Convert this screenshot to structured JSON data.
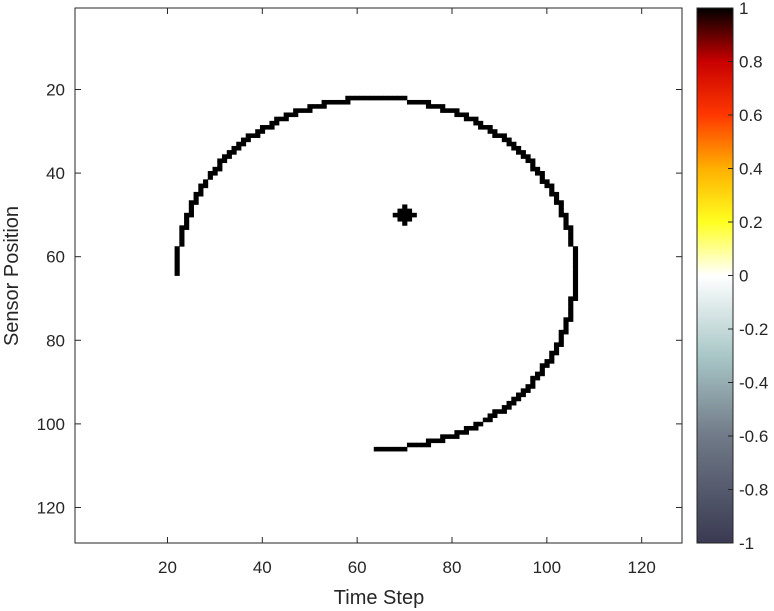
{
  "chart_data": {
    "type": "heatmap",
    "xlabel": "Time Step",
    "ylabel": "Sensor Position",
    "xlim": [
      0.5,
      128.5
    ],
    "ylim": [
      0.5,
      128.5
    ],
    "y_reversed": true,
    "x_ticks": [
      20,
      40,
      60,
      80,
      100,
      120
    ],
    "y_ticks": [
      20,
      40,
      60,
      80,
      100,
      120
    ],
    "grid": false,
    "colorbar": {
      "range": [
        -1,
        1
      ],
      "ticks": [
        "1",
        "0.8",
        "0.6",
        "0.4",
        "0.2",
        "0",
        "-0.2",
        "-0.4",
        "-0.6",
        "-0.8",
        "-1"
      ],
      "colormap_stops": [
        {
          "value": -1.0,
          "color": "#3a3a52"
        },
        {
          "value": -0.6,
          "color": "#707a88"
        },
        {
          "value": -0.3,
          "color": "#a9c7c7"
        },
        {
          "value": 0.0,
          "color": "#ffffff"
        },
        {
          "value": 0.2,
          "color": "#ffff20"
        },
        {
          "value": 0.4,
          "color": "#ffb000"
        },
        {
          "value": 0.6,
          "color": "#ff3800"
        },
        {
          "value": 0.8,
          "color": "#c80000"
        },
        {
          "value": 1.0,
          "color": "#000000"
        }
      ]
    },
    "background_value": 0,
    "feature_value": 1,
    "arc": {
      "center_x": 64,
      "center_y": 64,
      "radius": 42,
      "start_point": [
        22,
        64
      ],
      "end_point": [
        64,
        106
      ],
      "sweep": "clockwise through top and right",
      "thickness_cells": 1
    },
    "point": {
      "x": 70,
      "y": 50,
      "shape": "plus",
      "size_cells": 2
    }
  }
}
